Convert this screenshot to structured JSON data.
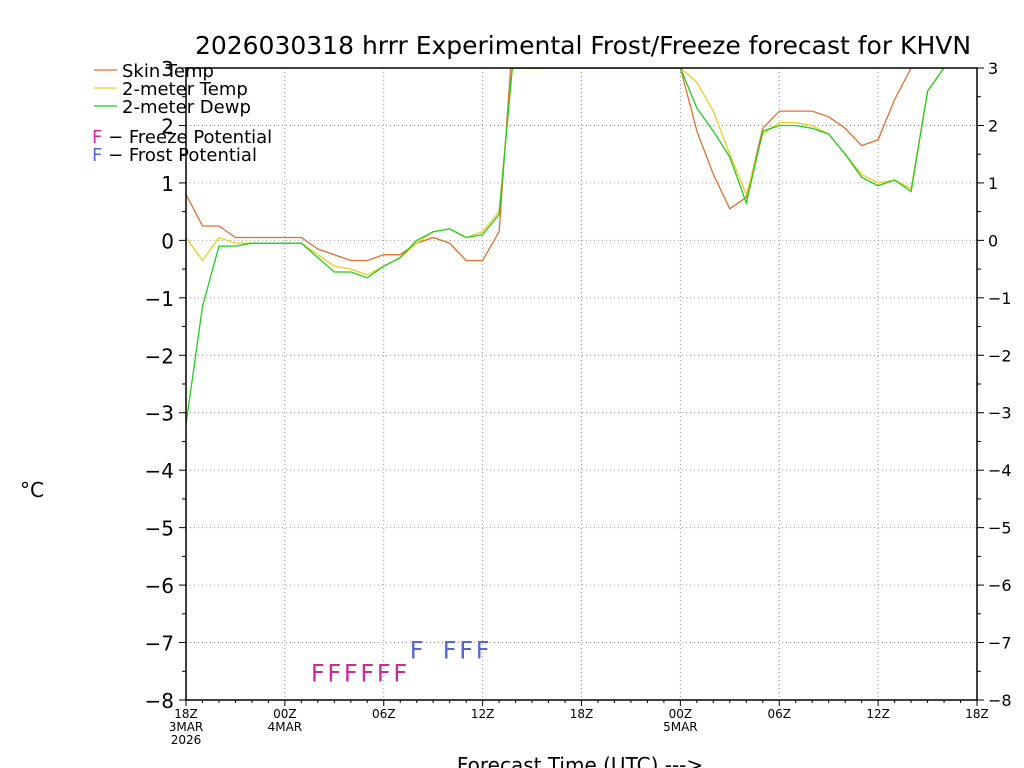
{
  "chart_data": {
    "type": "line",
    "title": "2026030318 hrrr Experimental Frost/Freeze forecast for KHVN",
    "xlabel": "Forecast Time (UTC) --->",
    "ylabel": "°C",
    "ylim": [
      -8,
      3
    ],
    "xlim": [
      0,
      48
    ],
    "grid": true,
    "yticks": [
      -8,
      -7,
      -6,
      -5,
      -4,
      -3,
      -2,
      -1,
      0,
      1,
      2,
      3
    ],
    "ytick_labels": [
      "−8",
      "−7",
      "−6",
      "−5",
      "−4",
      "−3",
      "−2",
      "−1",
      "0",
      "1",
      "2",
      "3"
    ],
    "xticks": [
      {
        "h": 0,
        "label": "18Z",
        "sub": [
          "3MAR",
          "2026"
        ]
      },
      {
        "h": 6,
        "label": "00Z",
        "sub": [
          "4MAR"
        ]
      },
      {
        "h": 12,
        "label": "06Z",
        "sub": []
      },
      {
        "h": 18,
        "label": "12Z",
        "sub": []
      },
      {
        "h": 24,
        "label": "18Z",
        "sub": []
      },
      {
        "h": 30,
        "label": "00Z",
        "sub": [
          "5MAR"
        ]
      },
      {
        "h": 36,
        "label": "06Z",
        "sub": []
      },
      {
        "h": 42,
        "label": "12Z",
        "sub": []
      },
      {
        "h": 48,
        "label": "18Z",
        "sub": []
      }
    ],
    "legend": [
      {
        "name": "Skin Temp",
        "color": "#e07030"
      },
      {
        "name": "2-meter Temp",
        "color": "#e8d020"
      },
      {
        "name": "2-meter Dewp",
        "color": "#22cc22"
      }
    ],
    "potential_legend": [
      {
        "letter": "F",
        "text": " − Freeze Potential",
        "color": "#cc2a9a"
      },
      {
        "letter": "F",
        "text": " − Frost Potential",
        "color": "#5566cc"
      }
    ],
    "series": [
      {
        "name": "Skin Temp",
        "color": "#e07030",
        "x": [
          0,
          1,
          2,
          3,
          4,
          5,
          6,
          7,
          8,
          9,
          10,
          11,
          12,
          13,
          14,
          15,
          16,
          17,
          18,
          19,
          19.7,
          30,
          31,
          32,
          33,
          34,
          35,
          36,
          37,
          38,
          39,
          40,
          41,
          42,
          43,
          44,
          45,
          46
        ],
        "y": [
          0.8,
          0.25,
          0.25,
          0.05,
          0.05,
          0.05,
          0.05,
          0.05,
          -0.15,
          -0.25,
          -0.35,
          -0.35,
          -0.25,
          -0.25,
          -0.05,
          0.05,
          -0.05,
          -0.35,
          -0.35,
          0.15,
          3,
          3,
          1.9,
          1.15,
          0.55,
          0.75,
          1.95,
          2.25,
          2.25,
          2.25,
          2.15,
          1.95,
          1.65,
          1.75,
          2.45,
          3,
          3,
          3
        ]
      },
      {
        "name": "2-meter Temp",
        "color": "#e8d020",
        "x": [
          0,
          1,
          2,
          3,
          4,
          5,
          6,
          7,
          8,
          9,
          10,
          11,
          12,
          13,
          14,
          15,
          16,
          17,
          18,
          19,
          19.8,
          30,
          31,
          32,
          33,
          34,
          35,
          36,
          37,
          38,
          39,
          40,
          41,
          42,
          43,
          44,
          45,
          46
        ],
        "y": [
          0.05,
          -0.35,
          0.05,
          -0.05,
          -0.05,
          -0.05,
          -0.05,
          -0.05,
          -0.25,
          -0.45,
          -0.5,
          -0.6,
          -0.45,
          -0.3,
          -0.05,
          0.15,
          0.2,
          0.05,
          0.15,
          0.5,
          3,
          3,
          2.75,
          2.25,
          1.5,
          0.8,
          1.85,
          2.05,
          2.05,
          2.0,
          1.85,
          1.5,
          1.15,
          1.0,
          1.05,
          0.9,
          2.6,
          3
        ]
      },
      {
        "name": "2-meter Dewp",
        "color": "#22cc22",
        "x": [
          0,
          1,
          2,
          3,
          4,
          5,
          6,
          7,
          8,
          9,
          10,
          11,
          12,
          13,
          14,
          15,
          16,
          17,
          18,
          19,
          19.8,
          30,
          31,
          32,
          33,
          34,
          35,
          36,
          37,
          38,
          39,
          40,
          41,
          42,
          43,
          44,
          45,
          46
        ],
        "y": [
          -3.2,
          -1.15,
          -0.1,
          -0.1,
          -0.05,
          -0.05,
          -0.05,
          -0.05,
          -0.3,
          -0.55,
          -0.55,
          -0.65,
          -0.45,
          -0.3,
          0.0,
          0.15,
          0.2,
          0.05,
          0.1,
          0.45,
          3,
          3,
          2.3,
          1.9,
          1.45,
          0.65,
          1.9,
          2.0,
          2.0,
          1.95,
          1.85,
          1.5,
          1.1,
          0.95,
          1.05,
          0.85,
          2.6,
          3
        ]
      }
    ],
    "freeze_potential": {
      "color": "#cc2a9a",
      "y": -7.5,
      "hours": [
        8,
        9,
        10,
        11,
        12,
        13
      ]
    },
    "frost_potential": {
      "color": "#5566cc",
      "y": -7.1,
      "hours": [
        14,
        16,
        17,
        18
      ]
    }
  }
}
